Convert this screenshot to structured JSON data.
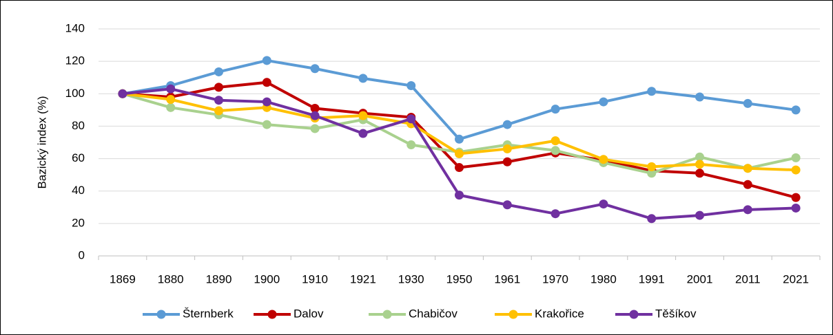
{
  "chart_data": {
    "type": "line",
    "ylabel": "Bazický index (%)",
    "categories": [
      "1869",
      "1880",
      "1890",
      "1900",
      "1910",
      "1921",
      "1930",
      "1950",
      "1961",
      "1970",
      "1980",
      "1991",
      "2001",
      "2011",
      "2021"
    ],
    "series": [
      {
        "name": "Šternberk",
        "color": "#5b9bd5",
        "values": [
          100,
          105,
          113.5,
          120.5,
          115.5,
          109.5,
          105,
          72,
          81,
          90.5,
          95,
          101.5,
          98,
          94,
          90
        ]
      },
      {
        "name": "Dalov",
        "color": "#c00000",
        "values": [
          100,
          98,
          104,
          107,
          91,
          88,
          85.5,
          54.5,
          58,
          63.5,
          59,
          52.5,
          51,
          44,
          36
        ]
      },
      {
        "name": "Chabičov",
        "color": "#a9d18e",
        "values": [
          100,
          91.5,
          87,
          81,
          78.5,
          84,
          68.5,
          64,
          68.5,
          65,
          57.5,
          51,
          61,
          54,
          60.5
        ]
      },
      {
        "name": "Krakořice",
        "color": "#ffc000",
        "values": [
          100,
          96.5,
          89.5,
          91.5,
          85,
          86.5,
          81.5,
          63,
          66,
          71,
          59.5,
          55,
          56.5,
          54,
          53
        ]
      },
      {
        "name": "Těšíkov",
        "color": "#7030a0",
        "values": [
          100,
          103,
          96,
          95,
          86.5,
          75.5,
          84.5,
          37.5,
          31.5,
          26,
          32,
          23,
          25,
          28.5,
          29.5
        ]
      }
    ],
    "ylim": [
      0,
      140
    ],
    "yticks": [
      0,
      20,
      40,
      60,
      80,
      100,
      120,
      140
    ],
    "grid": true,
    "legend": "bottom"
  }
}
